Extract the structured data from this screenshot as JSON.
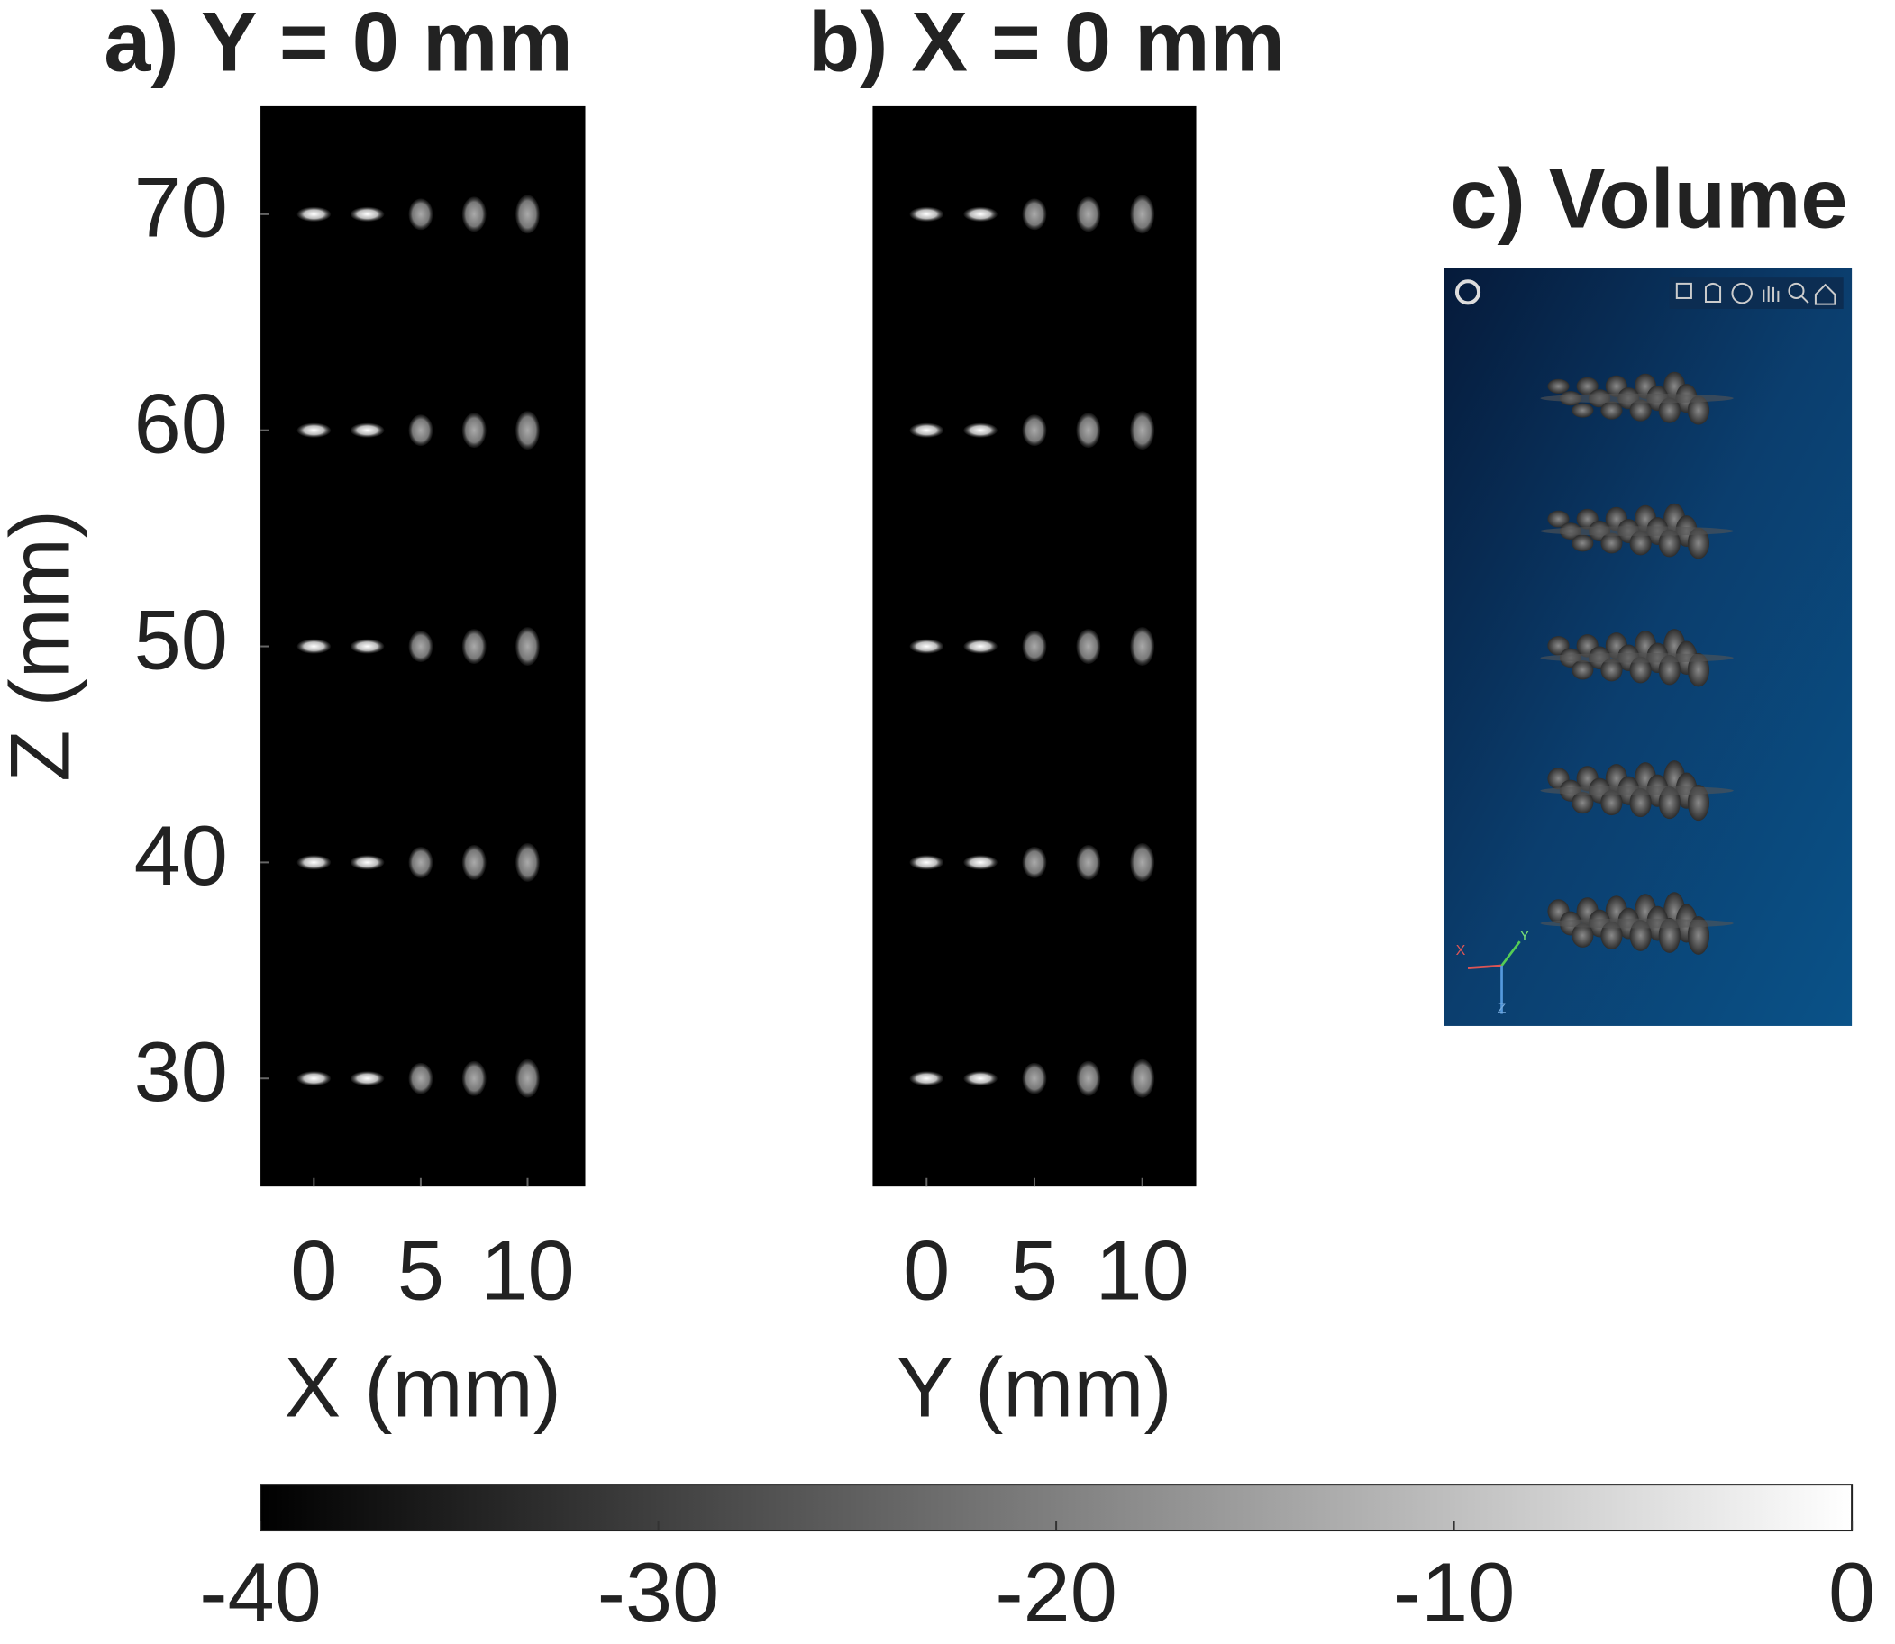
{
  "chart_data": [
    {
      "type": "image",
      "title": "a) Y = 0 mm",
      "x_label": "X (mm)",
      "y_label": "Z (mm)",
      "xlim": [
        -2.5,
        12.7
      ],
      "ylim": [
        75,
        25
      ],
      "xticks": [
        0,
        5,
        10
      ],
      "yticks": [
        30,
        40,
        50,
        60,
        70
      ],
      "points": {
        "x": [
          0,
          2.5,
          5,
          7.5,
          10,
          0,
          2.5,
          5,
          7.5,
          10,
          0,
          2.5,
          5,
          7.5,
          10,
          0,
          2.5,
          5,
          7.5,
          10,
          0,
          2.5,
          5,
          7.5,
          10
        ],
        "z": [
          30,
          30,
          30,
          30,
          30,
          40,
          40,
          40,
          40,
          40,
          50,
          50,
          50,
          50,
          50,
          60,
          60,
          60,
          60,
          60,
          70,
          70,
          70,
          70,
          70
        ]
      }
    },
    {
      "type": "image",
      "title": "b) X = 0 mm",
      "x_label": "Y (mm)",
      "xlim": [
        -2.5,
        12.5
      ],
      "ylim": [
        75,
        25
      ],
      "xticks": [
        0,
        5,
        10
      ],
      "points": {
        "x": [
          0,
          2.5,
          5,
          7.5,
          10,
          0,
          2.5,
          5,
          7.5,
          10,
          0,
          2.5,
          5,
          7.5,
          10,
          0,
          2.5,
          5,
          7.5,
          10,
          0,
          2.5,
          5,
          7.5,
          10
        ],
        "z": [
          30,
          30,
          30,
          30,
          30,
          40,
          40,
          40,
          40,
          40,
          50,
          50,
          50,
          50,
          50,
          60,
          60,
          60,
          60,
          60,
          70,
          70,
          70,
          70,
          70
        ]
      }
    },
    {
      "type": "colorbar",
      "lim": [
        -40,
        0
      ],
      "ticks": [
        -40,
        -30,
        -20,
        -10,
        0
      ],
      "colors": [
        "#000000",
        "#ffffff"
      ]
    }
  ],
  "volume": {
    "title": "c) Volume",
    "axis_labels": [
      "X",
      "Y",
      "Z"
    ]
  }
}
